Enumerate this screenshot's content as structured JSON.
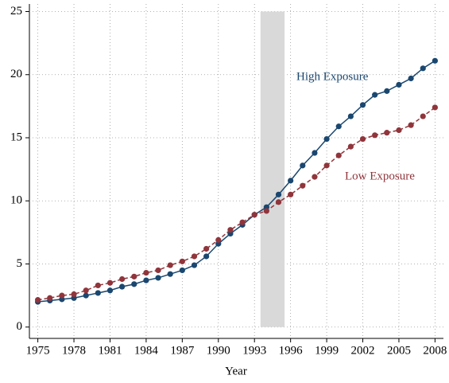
{
  "chart_data": {
    "type": "line",
    "x_label": "Year",
    "x": [
      1975,
      1976,
      1977,
      1978,
      1979,
      1980,
      1981,
      1982,
      1983,
      1984,
      1985,
      1986,
      1987,
      1988,
      1989,
      1990,
      1991,
      1992,
      1993,
      1994,
      1995,
      1996,
      1997,
      1998,
      1999,
      2000,
      2001,
      2002,
      2003,
      2004,
      2005,
      2006,
      2007,
      2008
    ],
    "series": [
      {
        "name": "High Exposure",
        "color": "#1a476f",
        "dashed": false,
        "values": [
          2.0,
          2.1,
          2.2,
          2.3,
          2.5,
          2.7,
          2.9,
          3.2,
          3.4,
          3.7,
          3.9,
          4.2,
          4.5,
          4.9,
          5.6,
          6.6,
          7.4,
          8.1,
          8.9,
          9.5,
          10.5,
          11.6,
          12.8,
          13.8,
          14.9,
          15.9,
          16.7,
          17.6,
          18.4,
          18.7,
          19.2,
          19.7,
          20.5,
          21.1
        ]
      },
      {
        "name": "Low Exposure",
        "color": "#90353b",
        "dashed": true,
        "values": [
          2.15,
          2.3,
          2.5,
          2.6,
          2.9,
          3.3,
          3.5,
          3.8,
          4.0,
          4.3,
          4.5,
          4.9,
          5.2,
          5.6,
          6.2,
          6.9,
          7.7,
          8.3,
          8.9,
          9.2,
          9.9,
          10.5,
          11.2,
          11.9,
          12.8,
          13.6,
          14.3,
          14.9,
          15.2,
          15.4,
          15.6,
          16.0,
          16.7,
          17.4
        ]
      }
    ],
    "shaded_span": {
      "x": [
        1993.5,
        1995.5
      ],
      "y": [
        0,
        25
      ],
      "color": "#d9d9d9"
    },
    "xlim": [
      1974.3,
      2008.7
    ],
    "xticks": [
      1975,
      1978,
      1981,
      1984,
      1987,
      1990,
      1993,
      1996,
      1999,
      2002,
      2005,
      2008
    ],
    "ylim": [
      -0.9,
      25.6
    ],
    "yticks": [
      0,
      5,
      10,
      15,
      20,
      25
    ],
    "grid": true
  }
}
